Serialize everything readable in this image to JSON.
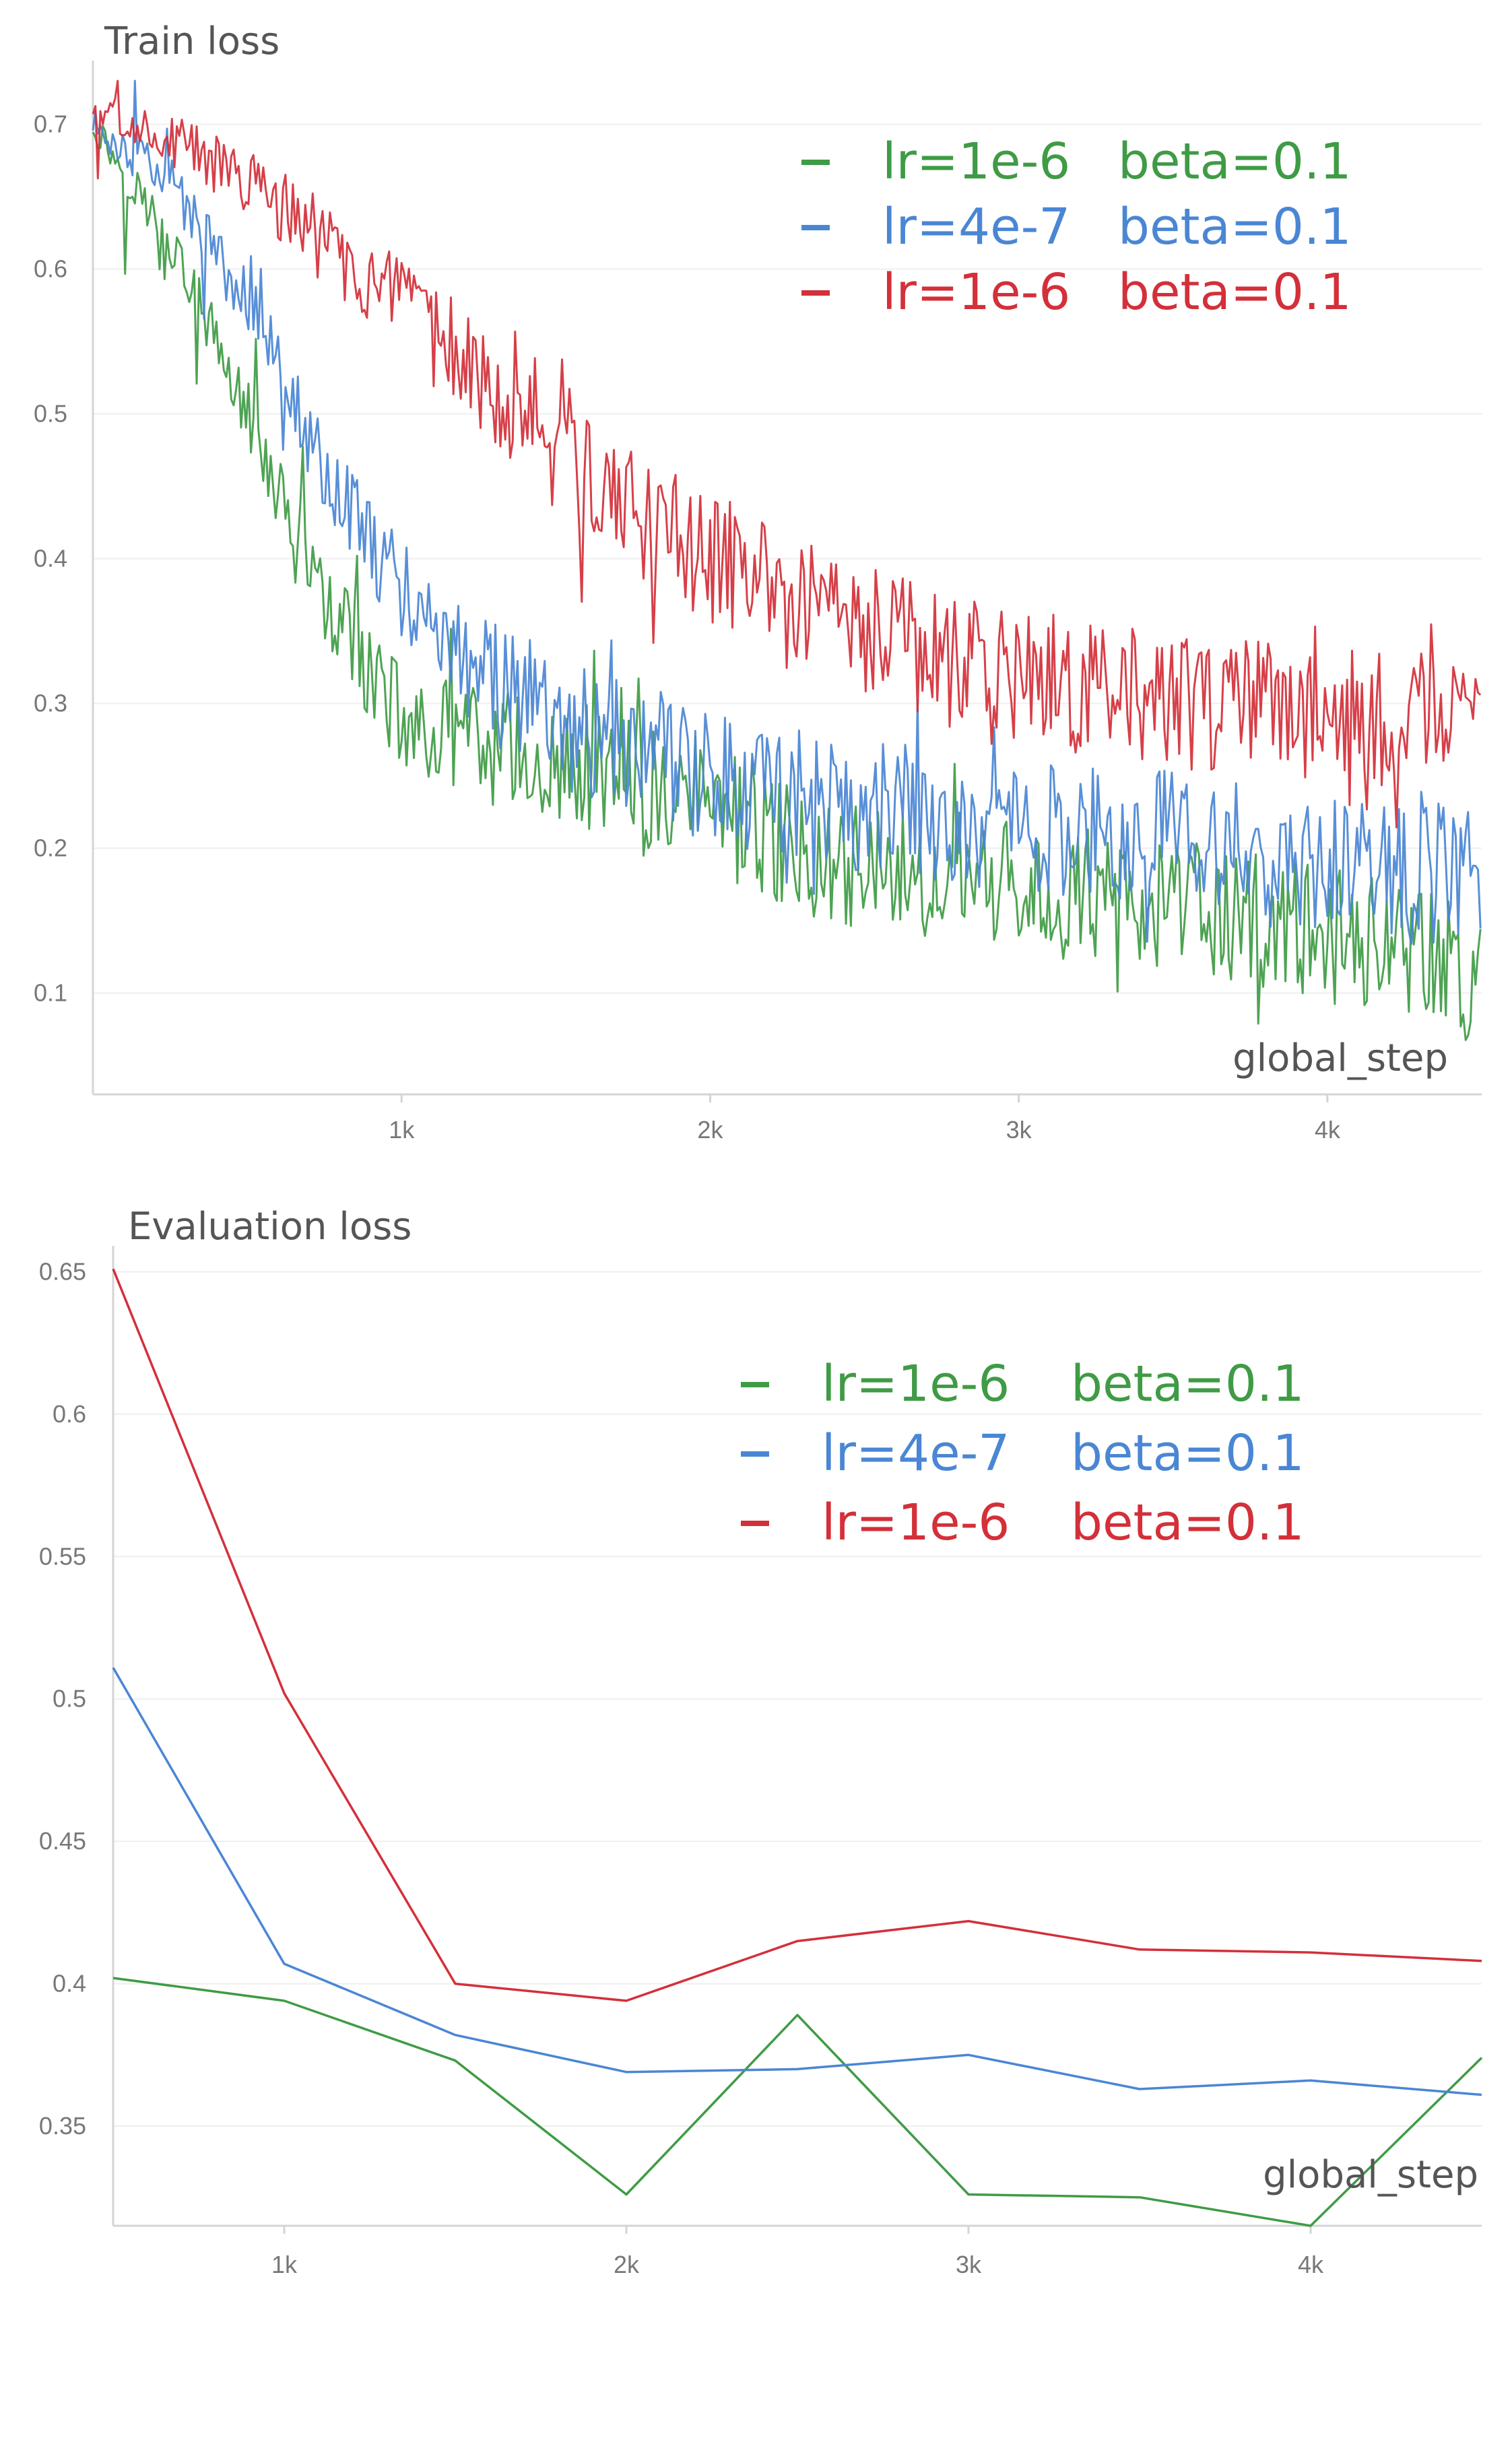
{
  "chart_data": [
    {
      "type": "line",
      "title": "Train loss",
      "xlabel": "global_step",
      "ylabel": "",
      "xlim": [
        0,
        4500
      ],
      "ylim": [
        0.03,
        0.73
      ],
      "x_ticks": [
        1000,
        2000,
        3000,
        4000
      ],
      "x_tick_labels": [
        "1k",
        "2k",
        "3k",
        "4k"
      ],
      "y_ticks": [
        0.1,
        0.2,
        0.3,
        0.4,
        0.5,
        0.6,
        0.7
      ],
      "y_tick_labels": [
        "0.1",
        "0.2",
        "0.3",
        "0.4",
        "0.5",
        "0.6",
        "0.7"
      ],
      "grid": true,
      "legend_position": "top-right",
      "series": [
        {
          "name": "lr=1e-6   beta=0.1",
          "label_lr": "lr=1e-6",
          "label_beta": "beta=0.1",
          "color": "#3f9b45",
          "x": [
            0,
            250,
            500,
            750,
            1000,
            1250,
            1500,
            1750,
            2000,
            2250,
            2500,
            2750,
            3000,
            3250,
            3500,
            3750,
            4000,
            4250,
            4500
          ],
          "values": [
            0.7,
            0.62,
            0.5,
            0.37,
            0.29,
            0.27,
            0.26,
            0.24,
            0.23,
            0.2,
            0.19,
            0.18,
            0.17,
            0.17,
            0.16,
            0.15,
            0.14,
            0.13,
            0.11
          ]
        },
        {
          "name": "lr=4e-7   beta=0.1",
          "label_lr": "lr=4e-7",
          "label_beta": "beta=0.1",
          "color": "#4a86d4",
          "x": [
            0,
            250,
            500,
            750,
            1000,
            1250,
            1500,
            1750,
            2000,
            2250,
            2500,
            2750,
            3000,
            3250,
            3500,
            3750,
            4000,
            4250,
            4500
          ],
          "values": [
            0.7,
            0.66,
            0.58,
            0.46,
            0.38,
            0.32,
            0.29,
            0.27,
            0.25,
            0.24,
            0.23,
            0.22,
            0.22,
            0.21,
            0.21,
            0.2,
            0.19,
            0.18,
            0.19
          ]
        },
        {
          "name": "lr=1e-6   beta=0.1",
          "label_lr": "lr=1e-6",
          "label_beta": "beta=0.1",
          "color": "#d3303a",
          "x": [
            0,
            250,
            500,
            750,
            1000,
            1250,
            1500,
            1750,
            2000,
            2250,
            2500,
            2750,
            3000,
            3250,
            3500,
            3750,
            4000,
            4250,
            4500
          ],
          "values": [
            0.71,
            0.69,
            0.66,
            0.62,
            0.57,
            0.53,
            0.48,
            0.43,
            0.4,
            0.37,
            0.35,
            0.33,
            0.32,
            0.31,
            0.3,
            0.3,
            0.29,
            0.29,
            0.28
          ]
        }
      ]
    },
    {
      "type": "line",
      "title": "Evaluation loss",
      "xlabel": "global_step",
      "ylabel": "",
      "xlim": [
        500,
        4500
      ],
      "ylim": [
        0.315,
        0.652
      ],
      "x_ticks": [
        1000,
        2000,
        3000,
        4000
      ],
      "x_tick_labels": [
        "1k",
        "2k",
        "3k",
        "4k"
      ],
      "y_ticks": [
        0.35,
        0.4,
        0.45,
        0.5,
        0.55,
        0.6,
        0.65
      ],
      "y_tick_labels": [
        "0.35",
        "0.4",
        "0.45",
        "0.5",
        "0.55",
        "0.6",
        "0.65"
      ],
      "grid": true,
      "legend_position": "top-right",
      "series": [
        {
          "name": "lr=1e-6   beta=0.1",
          "label_lr": "lr=1e-6",
          "label_beta": "beta=0.1",
          "color": "#3f9b45",
          "x": [
            500,
            1000,
            1500,
            2000,
            2500,
            3000,
            3500,
            4000,
            4500
          ],
          "values": [
            0.402,
            0.394,
            0.373,
            0.326,
            0.389,
            0.326,
            0.325,
            0.315,
            0.374
          ]
        },
        {
          "name": "lr=4e-7   beta=0.1",
          "label_lr": "lr=4e-7",
          "label_beta": "beta=0.1",
          "color": "#4a86d4",
          "x": [
            500,
            1000,
            1500,
            2000,
            2500,
            3000,
            3500,
            4000,
            4500
          ],
          "values": [
            0.511,
            0.407,
            0.382,
            0.369,
            0.37,
            0.375,
            0.363,
            0.366,
            0.361
          ]
        },
        {
          "name": "lr=1e-6   beta=0.1",
          "label_lr": "lr=1e-6",
          "label_beta": "beta=0.1",
          "color": "#d3303a",
          "x": [
            500,
            1000,
            1500,
            2000,
            2500,
            3000,
            3500,
            4000,
            4500
          ],
          "values": [
            0.651,
            0.502,
            0.4,
            0.394,
            0.415,
            0.422,
            0.412,
            0.411,
            0.408
          ]
        }
      ]
    }
  ]
}
